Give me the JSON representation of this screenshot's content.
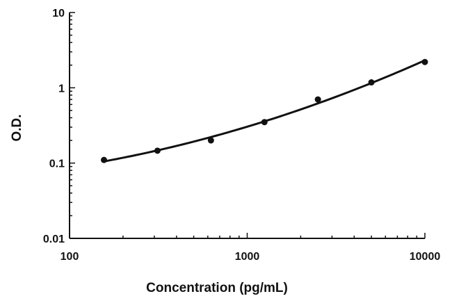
{
  "chart_data": {
    "type": "scatter",
    "xlabel": "Concentration (pg/mL)",
    "ylabel": "O.D.",
    "x_scale": "log",
    "y_scale": "log",
    "xlim": [
      100,
      10000
    ],
    "ylim": [
      0.01,
      10
    ],
    "x_ticks": [
      "100",
      "1000",
      "10000"
    ],
    "y_ticks": [
      "10",
      "1",
      "0.1",
      "0.01"
    ],
    "grid": false,
    "series": [
      {
        "x": [
          156.25,
          312.5,
          625,
          1250,
          2500,
          5000,
          10000
        ],
        "y": [
          0.11,
          0.146,
          0.2,
          0.35,
          0.7,
          1.18,
          2.2
        ]
      }
    ],
    "fit_curve": true
  }
}
